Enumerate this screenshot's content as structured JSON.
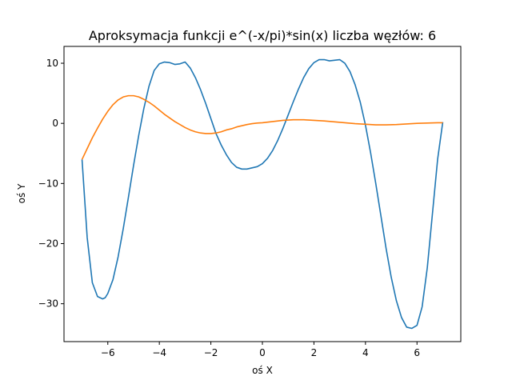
{
  "chart_data": {
    "type": "line",
    "title": "Aproksymacja funkcji e^(-x/pi)*sin(x) liczba węzłów: 6",
    "xlabel": "oś X",
    "ylabel": "oś Y",
    "xlim": [
      -7.7,
      7.7
    ],
    "ylim": [
      -36.3,
      12.8
    ],
    "x_ticks": [
      -6,
      -4,
      -2,
      0,
      2,
      4,
      6
    ],
    "x_tick_labels": [
      "−6",
      "−4",
      "−2",
      "0",
      "2",
      "4",
      "6"
    ],
    "y_ticks": [
      10,
      0,
      -10,
      -20,
      -30
    ],
    "y_tick_labels": [
      "10",
      "0",
      "−10",
      "−20",
      "−30"
    ],
    "grid": false,
    "legend": "none",
    "series": [
      {
        "color": "#1f77b4",
        "x": [
          -7.0,
          -6.8,
          -6.6,
          -6.4,
          -6.2,
          -6.1,
          -6.0,
          -5.8,
          -5.6,
          -5.4,
          -5.2,
          -5.0,
          -4.8,
          -4.6,
          -4.4,
          -4.2,
          -4.0,
          -3.8,
          -3.6,
          -3.4,
          -3.2,
          -3.0,
          -2.8,
          -2.6,
          -2.4,
          -2.2,
          -2.0,
          -1.8,
          -1.6,
          -1.4,
          -1.2,
          -1.0,
          -0.8,
          -0.6,
          -0.4,
          -0.2,
          0.0,
          0.2,
          0.4,
          0.6,
          0.8,
          1.0,
          1.2,
          1.4,
          1.6,
          1.8,
          2.0,
          2.2,
          2.4,
          2.6,
          2.8,
          3.0,
          3.2,
          3.4,
          3.6,
          3.8,
          4.0,
          4.2,
          4.4,
          4.6,
          4.8,
          5.0,
          5.2,
          5.4,
          5.6,
          5.8,
          6.0,
          6.2,
          6.4,
          6.6,
          6.8,
          7.0
        ],
        "y": [
          -6.0,
          -19.0,
          -26.5,
          -28.8,
          -29.2,
          -29.0,
          -28.3,
          -26.0,
          -22.2,
          -17.5,
          -12.3,
          -7.0,
          -2.0,
          2.5,
          6.2,
          8.8,
          9.9,
          10.2,
          10.1,
          9.8,
          9.9,
          10.2,
          9.2,
          7.6,
          5.6,
          3.3,
          0.8,
          -1.7,
          -3.6,
          -5.2,
          -6.5,
          -7.3,
          -7.6,
          -7.6,
          -7.4,
          -7.2,
          -6.7,
          -5.8,
          -4.5,
          -2.8,
          -0.8,
          1.4,
          3.6,
          5.7,
          7.6,
          9.1,
          10.1,
          10.6,
          10.6,
          10.4,
          10.5,
          10.6,
          10.0,
          8.6,
          6.4,
          3.5,
          -0.3,
          -4.9,
          -10.0,
          -15.4,
          -20.8,
          -25.6,
          -29.5,
          -32.3,
          -33.9,
          -34.1,
          -33.6,
          -30.5,
          -24.0,
          -15.0,
          -6.0,
          0.2
        ]
      },
      {
        "color": "#ff7f0e",
        "x": [
          -7.0,
          -6.8,
          -6.6,
          -6.4,
          -6.2,
          -6.0,
          -5.8,
          -5.6,
          -5.4,
          -5.2,
          -5.0,
          -4.8,
          -4.6,
          -4.4,
          -4.2,
          -4.0,
          -3.8,
          -3.6,
          -3.4,
          -3.2,
          -3.0,
          -2.8,
          -2.6,
          -2.4,
          -2.2,
          -2.0,
          -1.8,
          -1.6,
          -1.4,
          -1.2,
          -1.0,
          -0.8,
          -0.6,
          -0.4,
          -0.2,
          0.0,
          0.2,
          0.4,
          0.6,
          0.8,
          1.0,
          1.2,
          1.4,
          1.6,
          1.8,
          2.0,
          2.4,
          2.8,
          3.2,
          3.6,
          4.0,
          4.4,
          4.8,
          5.2,
          5.6,
          6.0,
          6.4,
          6.8,
          7.0
        ],
        "y": [
          -6.0,
          -4.2,
          -2.4,
          -0.8,
          0.7,
          2.0,
          3.1,
          3.9,
          4.4,
          4.6,
          4.6,
          4.4,
          4.0,
          3.5,
          2.9,
          2.2,
          1.5,
          0.9,
          0.3,
          -0.2,
          -0.7,
          -1.1,
          -1.4,
          -1.6,
          -1.7,
          -1.7,
          -1.6,
          -1.4,
          -1.1,
          -0.9,
          -0.6,
          -0.4,
          -0.2,
          -0.05,
          0.05,
          0.1,
          0.2,
          0.3,
          0.4,
          0.5,
          0.55,
          0.6,
          0.6,
          0.6,
          0.55,
          0.5,
          0.4,
          0.25,
          0.1,
          -0.05,
          -0.15,
          -0.25,
          -0.25,
          -0.2,
          -0.1,
          0.0,
          0.05,
          0.1,
          0.1
        ]
      }
    ]
  }
}
